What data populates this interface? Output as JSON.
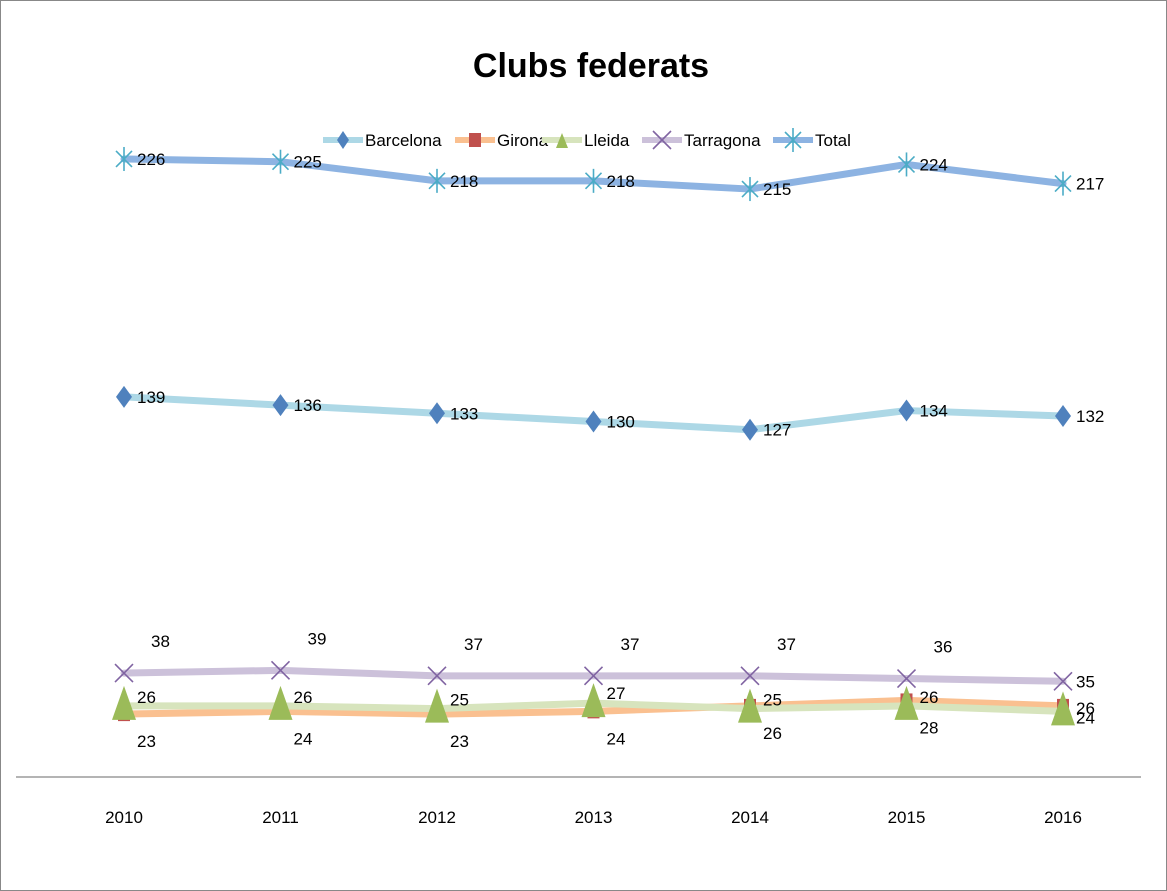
{
  "chart_data": {
    "type": "line",
    "title": "Clubs federats",
    "xlabel": "",
    "ylabel": "",
    "categories": [
      "2010",
      "2011",
      "2012",
      "2013",
      "2014",
      "2015",
      "2016"
    ],
    "ylim": [
      0,
      260
    ],
    "grid": false,
    "legend_position": "top",
    "series": [
      {
        "name": "Barcelona",
        "values": [
          139,
          136,
          133,
          130,
          127,
          134,
          132
        ],
        "color": "#add8e6",
        "marker": "diamond",
        "marker_color": "#4f81bd"
      },
      {
        "name": "Girona",
        "values": [
          23,
          24,
          23,
          24,
          26,
          28,
          26
        ],
        "color": "#fac090",
        "marker": "square",
        "marker_color": "#c0504d"
      },
      {
        "name": "Lleida",
        "values": [
          26,
          26,
          25,
          27,
          25,
          26,
          24
        ],
        "color": "#d7e4bd",
        "marker": "triangle",
        "marker_color": "#9bbb59"
      },
      {
        "name": "Tarragona",
        "values": [
          38,
          39,
          37,
          37,
          37,
          36,
          35
        ],
        "color": "#ccc1da",
        "marker": "x",
        "marker_color": "#8064a2"
      },
      {
        "name": "Total",
        "values": [
          226,
          225,
          218,
          218,
          215,
          224,
          217
        ],
        "color": "#8db3e2",
        "marker": "asterisk",
        "marker_color": "#4bacc6"
      }
    ]
  }
}
